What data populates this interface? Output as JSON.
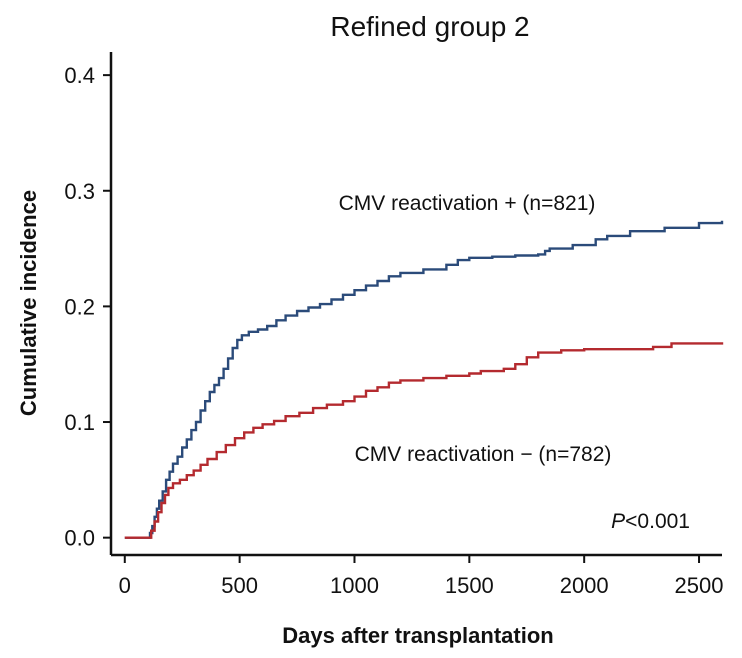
{
  "chart_data": {
    "type": "line",
    "title": "Refined group 2",
    "xlabel": "Days after transplantation",
    "ylabel": "Cumulative incidence",
    "xlim": [
      -60,
      2600
    ],
    "ylim": [
      -0.015,
      0.42
    ],
    "xticks": [
      0,
      500,
      1000,
      1500,
      2000,
      2500
    ],
    "yticks": [
      0.0,
      0.1,
      0.2,
      0.3,
      0.4
    ],
    "x_tick_labels": [
      "0",
      "500",
      "1000",
      "1500",
      "2000",
      "2500"
    ],
    "y_tick_labels": [
      "0.0",
      "0.1",
      "0.2",
      "0.3",
      "0.4"
    ],
    "step": true,
    "grid": false,
    "legend": "none",
    "series": [
      {
        "color": "#2b4b7a",
        "points": [
          [
            0,
            0.0
          ],
          [
            100,
            0.0
          ],
          [
            110,
            0.004
          ],
          [
            120,
            0.01
          ],
          [
            130,
            0.018
          ],
          [
            140,
            0.025
          ],
          [
            150,
            0.032
          ],
          [
            165,
            0.04
          ],
          [
            180,
            0.05
          ],
          [
            195,
            0.057
          ],
          [
            210,
            0.064
          ],
          [
            230,
            0.07
          ],
          [
            250,
            0.078
          ],
          [
            270,
            0.085
          ],
          [
            290,
            0.093
          ],
          [
            310,
            0.1
          ],
          [
            330,
            0.11
          ],
          [
            350,
            0.118
          ],
          [
            370,
            0.126
          ],
          [
            390,
            0.132
          ],
          [
            410,
            0.138
          ],
          [
            430,
            0.146
          ],
          [
            450,
            0.155
          ],
          [
            470,
            0.164
          ],
          [
            490,
            0.171
          ],
          [
            510,
            0.175
          ],
          [
            540,
            0.178
          ],
          [
            580,
            0.18
          ],
          [
            620,
            0.183
          ],
          [
            660,
            0.188
          ],
          [
            700,
            0.192
          ],
          [
            750,
            0.196
          ],
          [
            800,
            0.199
          ],
          [
            850,
            0.202
          ],
          [
            900,
            0.206
          ],
          [
            950,
            0.21
          ],
          [
            1000,
            0.214
          ],
          [
            1050,
            0.218
          ],
          [
            1100,
            0.222
          ],
          [
            1150,
            0.226
          ],
          [
            1200,
            0.229
          ],
          [
            1300,
            0.232
          ],
          [
            1400,
            0.236
          ],
          [
            1450,
            0.24
          ],
          [
            1500,
            0.242
          ],
          [
            1600,
            0.243
          ],
          [
            1700,
            0.244
          ],
          [
            1800,
            0.245
          ],
          [
            1830,
            0.248
          ],
          [
            1850,
            0.25
          ],
          [
            1950,
            0.253
          ],
          [
            2050,
            0.258
          ],
          [
            2100,
            0.261
          ],
          [
            2200,
            0.265
          ],
          [
            2350,
            0.268
          ],
          [
            2500,
            0.272
          ],
          [
            2600,
            0.274
          ]
        ]
      },
      {
        "color": "#b42a2f",
        "points": [
          [
            0,
            0.0
          ],
          [
            105,
            0.0
          ],
          [
            115,
            0.006
          ],
          [
            130,
            0.014
          ],
          [
            145,
            0.022
          ],
          [
            160,
            0.03
          ],
          [
            175,
            0.037
          ],
          [
            190,
            0.043
          ],
          [
            210,
            0.047
          ],
          [
            240,
            0.05
          ],
          [
            270,
            0.054
          ],
          [
            300,
            0.058
          ],
          [
            330,
            0.063
          ],
          [
            360,
            0.068
          ],
          [
            400,
            0.074
          ],
          [
            440,
            0.08
          ],
          [
            480,
            0.086
          ],
          [
            520,
            0.091
          ],
          [
            560,
            0.095
          ],
          [
            600,
            0.098
          ],
          [
            650,
            0.101
          ],
          [
            700,
            0.105
          ],
          [
            760,
            0.108
          ],
          [
            820,
            0.112
          ],
          [
            880,
            0.115
          ],
          [
            950,
            0.118
          ],
          [
            1000,
            0.122
          ],
          [
            1050,
            0.127
          ],
          [
            1100,
            0.13
          ],
          [
            1150,
            0.134
          ],
          [
            1200,
            0.136
          ],
          [
            1300,
            0.138
          ],
          [
            1400,
            0.14
          ],
          [
            1500,
            0.142
          ],
          [
            1550,
            0.144
          ],
          [
            1650,
            0.146
          ],
          [
            1700,
            0.15
          ],
          [
            1750,
            0.156
          ],
          [
            1800,
            0.16
          ],
          [
            1900,
            0.162
          ],
          [
            2000,
            0.163
          ],
          [
            2300,
            0.165
          ],
          [
            2380,
            0.168
          ],
          [
            2600,
            0.169
          ]
        ]
      }
    ],
    "annotations": {
      "cmv_positive": "CMV reactivation + (n=821)",
      "cmv_negative": "CMV reactivation − (n=782)",
      "p_value_italic": "P",
      "p_value_rest": "<0.001"
    }
  }
}
